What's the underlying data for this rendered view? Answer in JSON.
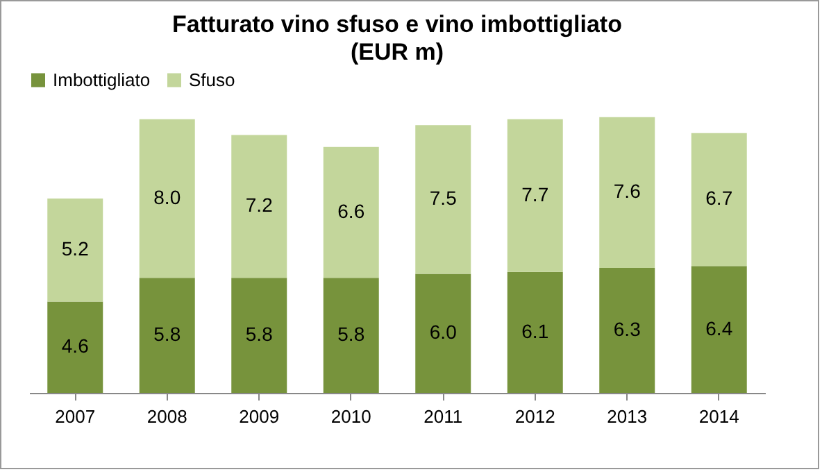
{
  "chart_data": {
    "type": "bar",
    "title": "Fatturato vino sfuso e vino imbottigliato",
    "subtitle": "(EUR m)",
    "categories": [
      "2007",
      "2008",
      "2009",
      "2010",
      "2011",
      "2012",
      "2013",
      "2014"
    ],
    "series": [
      {
        "name": "Imbottigliato",
        "color": "#77933c",
        "values": [
          4.6,
          5.8,
          5.8,
          5.8,
          6.0,
          6.1,
          6.3,
          6.4
        ],
        "value_labels": [
          "4.6",
          "5.8",
          "5.8",
          "5.8",
          "6.0",
          "6.1",
          "6.3",
          "6.4"
        ]
      },
      {
        "name": "Sfuso",
        "color": "#c3d69b",
        "values": [
          5.2,
          8.0,
          7.2,
          6.6,
          7.5,
          7.7,
          7.6,
          6.7
        ],
        "value_labels": [
          "5.2",
          "8.0",
          "7.2",
          "6.6",
          "7.5",
          "7.7",
          "7.6",
          "6.7"
        ]
      }
    ],
    "stacked": true,
    "legend": "top",
    "grid": false
  }
}
